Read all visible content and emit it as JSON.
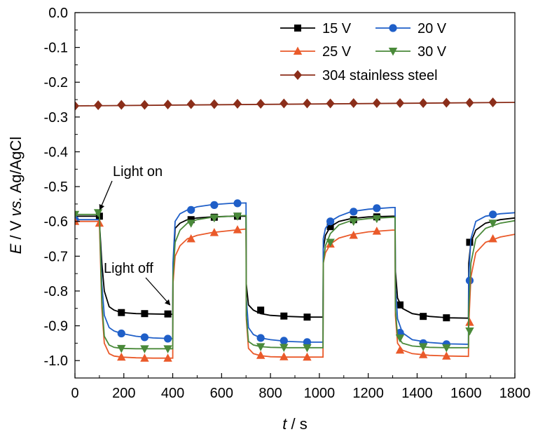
{
  "chart_data": {
    "type": "line",
    "xlabel_var": "t",
    "xlabel_unit": " / s",
    "ylabel_var": "E",
    "ylabel_mid": " / V ",
    "ylabel_vs": "vs.",
    "ylabel_ref": " Ag/AgCl",
    "xlim": [
      0,
      1800
    ],
    "ylim": [
      -1.05,
      0.0
    ],
    "xticks": [
      0,
      200,
      400,
      600,
      800,
      1000,
      1200,
      1400,
      1600,
      1800
    ],
    "xtick_labels": [
      "0",
      "200",
      "400",
      "600",
      "800",
      "1000",
      "1200",
      "1400",
      "1600",
      "1800"
    ],
    "yticks": [
      0.0,
      -0.1,
      -0.2,
      -0.3,
      -0.4,
      -0.5,
      -0.6,
      -0.7,
      -0.8,
      -0.9,
      -1.0
    ],
    "ytick_labels": [
      "0.0",
      "-0.1",
      "-0.2",
      "-0.3",
      "-0.4",
      "-0.5",
      "-0.6",
      "-0.7",
      "-0.8",
      "-0.9",
      "-1.0"
    ],
    "grid": false,
    "legend_position": "top-right",
    "annotations": [
      {
        "text": "Light on",
        "x": 100,
        "y": -0.5
      },
      {
        "text": "Light off",
        "x": 390,
        "y": -0.745
      }
    ],
    "series": [
      {
        "name": "15 V",
        "color": "#000000",
        "marker": "square",
        "x": [
          0,
          95,
          100,
          110,
          120,
          140,
          160,
          190,
          250,
          320,
          400,
          401,
          410,
          430,
          460,
          500,
          560,
          640,
          700,
          701,
          710,
          730,
          760,
          800,
          870,
          950,
          1015,
          1016,
          1025,
          1045,
          1080,
          1130,
          1200,
          1300,
          1310,
          1311,
          1320,
          1340,
          1380,
          1450,
          1530,
          1610,
          1611,
          1620,
          1640,
          1680,
          1740,
          1800
        ],
        "y": [
          -0.585,
          -0.585,
          -0.6,
          -0.72,
          -0.8,
          -0.845,
          -0.855,
          -0.862,
          -0.865,
          -0.866,
          -0.867,
          -0.75,
          -0.62,
          -0.605,
          -0.595,
          -0.59,
          -0.587,
          -0.585,
          -0.585,
          -0.78,
          -0.84,
          -0.855,
          -0.865,
          -0.87,
          -0.873,
          -0.875,
          -0.875,
          -0.68,
          -0.64,
          -0.615,
          -0.6,
          -0.592,
          -0.587,
          -0.585,
          -0.585,
          -0.74,
          -0.82,
          -0.85,
          -0.865,
          -0.873,
          -0.877,
          -0.878,
          -0.72,
          -0.66,
          -0.625,
          -0.605,
          -0.595,
          -0.59
        ],
        "marker_x": [
          100,
          190,
          285,
          380,
          475,
          570,
          665,
          760,
          855,
          950,
          1045,
          1140,
          1235,
          1330,
          1425,
          1520,
          1615
        ],
        "marker_y": [
          -0.585,
          -0.862,
          -0.865,
          -0.866,
          -0.595,
          -0.588,
          -0.585,
          -0.855,
          -0.872,
          -0.875,
          -0.615,
          -0.595,
          -0.587,
          -0.84,
          -0.873,
          -0.877,
          -0.66
        ]
      },
      {
        "name": "20 V",
        "color": "#1f5fc8",
        "marker": "circle",
        "x": [
          0,
          95,
          100,
          110,
          120,
          140,
          160,
          190,
          250,
          320,
          400,
          401,
          410,
          430,
          460,
          500,
          560,
          640,
          700,
          701,
          710,
          730,
          760,
          800,
          870,
          950,
          1015,
          1016,
          1025,
          1045,
          1080,
          1130,
          1200,
          1300,
          1310,
          1311,
          1320,
          1340,
          1380,
          1450,
          1530,
          1610,
          1611,
          1620,
          1640,
          1680,
          1740,
          1800
        ],
        "y": [
          -0.595,
          -0.595,
          -0.6,
          -0.78,
          -0.87,
          -0.905,
          -0.915,
          -0.922,
          -0.93,
          -0.935,
          -0.937,
          -0.72,
          -0.6,
          -0.578,
          -0.567,
          -0.558,
          -0.552,
          -0.548,
          -0.547,
          -0.82,
          -0.905,
          -0.925,
          -0.935,
          -0.94,
          -0.945,
          -0.947,
          -0.947,
          -0.65,
          -0.62,
          -0.6,
          -0.585,
          -0.572,
          -0.565,
          -0.56,
          -0.56,
          -0.78,
          -0.88,
          -0.92,
          -0.94,
          -0.948,
          -0.952,
          -0.953,
          -0.76,
          -0.65,
          -0.6,
          -0.585,
          -0.578,
          -0.575
        ],
        "marker_x": [
          0,
          190,
          285,
          380,
          475,
          570,
          665,
          760,
          855,
          950,
          1045,
          1140,
          1235,
          1330,
          1425,
          1520,
          1615,
          1710
        ],
        "marker_y": [
          -0.595,
          -0.922,
          -0.933,
          -0.937,
          -0.567,
          -0.553,
          -0.548,
          -0.935,
          -0.943,
          -0.947,
          -0.6,
          -0.572,
          -0.562,
          -0.92,
          -0.95,
          -0.953,
          -0.77,
          -0.58
        ]
      },
      {
        "name": "25 V",
        "color": "#ea5a2a",
        "marker": "triangle-up",
        "x": [
          0,
          95,
          100,
          110,
          120,
          140,
          160,
          190,
          250,
          320,
          400,
          401,
          410,
          430,
          460,
          500,
          560,
          640,
          700,
          701,
          710,
          730,
          760,
          800,
          870,
          950,
          1015,
          1016,
          1025,
          1045,
          1080,
          1130,
          1200,
          1300,
          1310,
          1311,
          1320,
          1340,
          1380,
          1450,
          1530,
          1610,
          1611,
          1620,
          1640,
          1680,
          1740,
          1800
        ],
        "y": [
          -0.6,
          -0.6,
          -0.605,
          -0.85,
          -0.95,
          -0.98,
          -0.987,
          -0.99,
          -0.992,
          -0.993,
          -0.993,
          -0.78,
          -0.7,
          -0.67,
          -0.65,
          -0.64,
          -0.632,
          -0.626,
          -0.622,
          -0.88,
          -0.965,
          -0.98,
          -0.986,
          -0.989,
          -0.99,
          -0.99,
          -0.99,
          -0.72,
          -0.69,
          -0.665,
          -0.648,
          -0.638,
          -0.63,
          -0.625,
          -0.625,
          -0.87,
          -0.95,
          -0.97,
          -0.98,
          -0.985,
          -0.987,
          -0.988,
          -0.9,
          -0.76,
          -0.69,
          -0.66,
          -0.645,
          -0.637
        ],
        "marker_x": [
          0,
          100,
          190,
          285,
          380,
          475,
          570,
          665,
          760,
          855,
          950,
          1045,
          1140,
          1235,
          1330,
          1425,
          1520,
          1615,
          1710
        ],
        "marker_y": [
          -0.6,
          -0.605,
          -0.99,
          -0.993,
          -0.993,
          -0.65,
          -0.632,
          -0.624,
          -0.985,
          -0.989,
          -0.99,
          -0.665,
          -0.64,
          -0.628,
          -0.97,
          -0.983,
          -0.987,
          -0.89,
          -0.65
        ]
      },
      {
        "name": "30 V",
        "color": "#4a8a3a",
        "marker": "triangle-down",
        "x": [
          0,
          95,
          100,
          110,
          120,
          140,
          160,
          190,
          250,
          320,
          400,
          401,
          410,
          430,
          460,
          500,
          560,
          640,
          700,
          701,
          710,
          730,
          760,
          800,
          870,
          950,
          1015,
          1016,
          1025,
          1045,
          1080,
          1130,
          1200,
          1300,
          1310,
          1311,
          1320,
          1340,
          1380,
          1450,
          1530,
          1610,
          1611,
          1620,
          1640,
          1680,
          1740,
          1800
        ],
        "y": [
          -0.58,
          -0.58,
          -0.58,
          -0.83,
          -0.93,
          -0.955,
          -0.962,
          -0.965,
          -0.966,
          -0.966,
          -0.966,
          -0.76,
          -0.66,
          -0.625,
          -0.605,
          -0.595,
          -0.588,
          -0.585,
          -0.583,
          -0.87,
          -0.945,
          -0.955,
          -0.96,
          -0.962,
          -0.963,
          -0.963,
          -0.963,
          -0.72,
          -0.67,
          -0.635,
          -0.61,
          -0.598,
          -0.592,
          -0.588,
          -0.588,
          -0.85,
          -0.93,
          -0.95,
          -0.958,
          -0.962,
          -0.963,
          -0.963,
          -0.86,
          -0.72,
          -0.65,
          -0.62,
          -0.605,
          -0.598
        ],
        "marker_x": [
          0,
          95,
          190,
          285,
          380,
          475,
          570,
          665,
          760,
          855,
          950,
          1045,
          1140,
          1235,
          1330,
          1425,
          1520,
          1615,
          1710
        ],
        "marker_y": [
          -0.58,
          -0.575,
          -0.965,
          -0.966,
          -0.966,
          -0.605,
          -0.59,
          -0.585,
          -0.96,
          -0.962,
          -0.963,
          -0.66,
          -0.6,
          -0.592,
          -0.935,
          -0.96,
          -0.963,
          -0.915,
          -0.605
        ]
      },
      {
        "name": "304 stainless steel",
        "color": "#8b2e1a",
        "marker": "diamond",
        "x": [
          0,
          1800
        ],
        "y": [
          -0.268,
          -0.258
        ],
        "marker_x": [
          0,
          95,
          190,
          285,
          380,
          475,
          570,
          665,
          760,
          855,
          950,
          1045,
          1140,
          1235,
          1330,
          1425,
          1520,
          1615,
          1710
        ],
        "marker_y": [
          -0.268,
          -0.266,
          -0.265,
          -0.265,
          -0.264,
          -0.263,
          -0.263,
          -0.262,
          -0.262,
          -0.261,
          -0.261,
          -0.261,
          -0.26,
          -0.26,
          -0.26,
          -0.26,
          -0.259,
          -0.259,
          -0.258
        ]
      }
    ]
  }
}
